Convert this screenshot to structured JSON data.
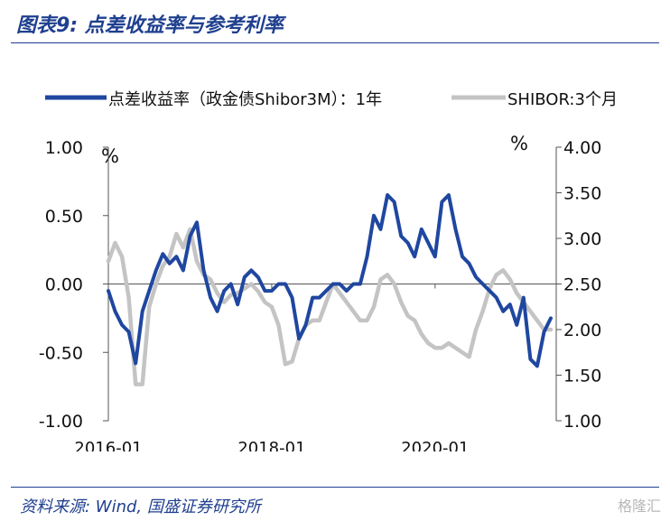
{
  "figure": {
    "title": "图表9: 点差收益率与参考利率",
    "source": "资料来源: Wind, 国盛证券研究所",
    "watermark": "格隆汇"
  },
  "chart_data": {
    "type": "line",
    "legend_position": "top",
    "grid": false,
    "left_axis": {
      "unit": "%",
      "lim": [
        -1.0,
        1.0
      ],
      "ticks": [
        "1.00",
        "0.50",
        "0.00",
        "-0.50",
        "-1.00"
      ]
    },
    "right_axis": {
      "unit": "%",
      "lim": [
        1.0,
        4.0
      ],
      "ticks": [
        "4.00",
        "3.50",
        "3.00",
        "2.50",
        "2.00",
        "1.50",
        "1.00"
      ]
    },
    "x_ticks": [
      "2016-01",
      "2018-01",
      "2020-01"
    ],
    "colors": {
      "spread": "#1f47a0",
      "shibor": "#c4c4c4"
    },
    "series": [
      {
        "name": "点差收益率（政金债Shibor3M）：1年",
        "axis": "left",
        "x": [
          "2016-01",
          "2016-02",
          "2016-03",
          "2016-04",
          "2016-05",
          "2016-06",
          "2016-07",
          "2016-08",
          "2016-09",
          "2016-10",
          "2016-11",
          "2016-12",
          "2017-01",
          "2017-02",
          "2017-03",
          "2017-04",
          "2017-05",
          "2017-06",
          "2017-07",
          "2017-08",
          "2017-09",
          "2017-10",
          "2017-11",
          "2017-12",
          "2018-01",
          "2018-02",
          "2018-03",
          "2018-04",
          "2018-05",
          "2018-06",
          "2018-07",
          "2018-08",
          "2018-09",
          "2018-10",
          "2018-11",
          "2018-12",
          "2019-01",
          "2019-02",
          "2019-03",
          "2019-04",
          "2019-05",
          "2019-06",
          "2019-07",
          "2019-08",
          "2019-09",
          "2019-10",
          "2019-11",
          "2019-12",
          "2020-01",
          "2020-02",
          "2020-03",
          "2020-04",
          "2020-05",
          "2020-06",
          "2020-07",
          "2020-08",
          "2020-09",
          "2020-10",
          "2020-11",
          "2020-12",
          "2021-01",
          "2021-02",
          "2021-03",
          "2021-04",
          "2021-05",
          "2021-06"
        ],
        "values": [
          -0.05,
          -0.2,
          -0.3,
          -0.35,
          -0.58,
          -0.2,
          -0.05,
          0.1,
          0.22,
          0.15,
          0.2,
          0.1,
          0.35,
          0.45,
          0.1,
          -0.1,
          -0.2,
          -0.05,
          0.0,
          -0.15,
          0.05,
          0.1,
          0.05,
          -0.05,
          -0.05,
          0.0,
          0.0,
          -0.1,
          -0.4,
          -0.3,
          -0.1,
          -0.1,
          -0.05,
          0.0,
          0.0,
          -0.05,
          0.0,
          0.0,
          0.2,
          0.5,
          0.4,
          0.65,
          0.6,
          0.35,
          0.3,
          0.2,
          0.4,
          0.3,
          0.2,
          0.6,
          0.65,
          0.4,
          0.2,
          0.15,
          0.05,
          0.0,
          -0.05,
          -0.1,
          -0.2,
          -0.15,
          -0.3,
          -0.1,
          -0.55,
          -0.6,
          -0.35,
          -0.25
        ]
      },
      {
        "name": "SHIBOR:3个月",
        "axis": "right",
        "x": [
          "2016-01",
          "2016-02",
          "2016-03",
          "2016-04",
          "2016-05",
          "2016-06",
          "2016-07",
          "2016-08",
          "2016-09",
          "2016-10",
          "2016-11",
          "2016-12",
          "2017-01",
          "2017-02",
          "2017-03",
          "2017-04",
          "2017-05",
          "2017-06",
          "2017-07",
          "2017-08",
          "2017-09",
          "2017-10",
          "2017-11",
          "2017-12",
          "2018-01",
          "2018-02",
          "2018-03",
          "2018-04",
          "2018-05",
          "2018-06",
          "2018-07",
          "2018-08",
          "2018-09",
          "2018-10",
          "2018-11",
          "2018-12",
          "2019-01",
          "2019-02",
          "2019-03",
          "2019-04",
          "2019-05",
          "2019-06",
          "2019-07",
          "2019-08",
          "2019-09",
          "2019-10",
          "2019-11",
          "2019-12",
          "2020-01",
          "2020-02",
          "2020-03",
          "2020-04",
          "2020-05",
          "2020-06",
          "2020-07",
          "2020-08",
          "2020-09",
          "2020-10",
          "2020-11",
          "2020-12",
          "2021-01",
          "2021-02",
          "2021-03",
          "2021-04",
          "2021-05",
          "2021-06"
        ],
        "values": [
          2.75,
          2.95,
          2.8,
          2.35,
          1.4,
          1.4,
          2.25,
          2.5,
          2.7,
          2.8,
          3.05,
          2.9,
          3.1,
          2.75,
          2.6,
          2.55,
          2.4,
          2.3,
          2.38,
          2.4,
          2.45,
          2.5,
          2.42,
          2.3,
          2.25,
          2.05,
          1.62,
          1.65,
          1.9,
          2.05,
          2.1,
          2.1,
          2.3,
          2.5,
          2.4,
          2.3,
          2.2,
          2.1,
          2.1,
          2.25,
          2.55,
          2.6,
          2.5,
          2.3,
          2.15,
          2.1,
          1.95,
          1.85,
          1.8,
          1.8,
          1.85,
          1.8,
          1.75,
          1.7,
          2.0,
          2.2,
          2.45,
          2.6,
          2.65,
          2.55,
          2.4,
          2.3,
          2.2,
          2.1,
          2.0,
          2.0
        ]
      }
    ]
  }
}
